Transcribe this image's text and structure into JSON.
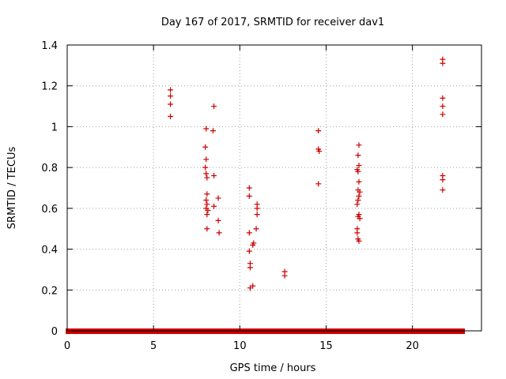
{
  "chart_data": {
    "type": "scatter",
    "title": "Day 167 of 2017, SRMTID for receiver dav1",
    "xlabel": "GPS time / hours",
    "ylabel": "SRMTID / TECUs",
    "xlim": [
      0,
      24
    ],
    "ylim": [
      0,
      1.4
    ],
    "xticks": [
      0,
      5,
      10,
      15,
      20
    ],
    "xtick_labels": [
      "0",
      "5",
      "10",
      "15",
      "20"
    ],
    "yticks": [
      0,
      0.2,
      0.4,
      0.6,
      0.8,
      1.0,
      1.2,
      1.4
    ],
    "ytick_labels": [
      "0",
      "0.2",
      "0.4",
      "0.6",
      "0.8",
      "1",
      "1.2",
      "1.4"
    ],
    "grid": true,
    "marker": "+",
    "color": "#cc0000",
    "zero_baseline": {
      "y": 0,
      "segments": [
        [
          0.05,
          8.1
        ],
        [
          8.25,
          14.65
        ],
        [
          14.75,
          16.9
        ],
        [
          17.05,
          21.7
        ],
        [
          21.8,
          22.9
        ]
      ]
    },
    "points": [
      {
        "x": 5.98,
        "y": 1.18
      },
      {
        "x": 5.98,
        "y": 1.15
      },
      {
        "x": 5.98,
        "y": 1.11
      },
      {
        "x": 5.98,
        "y": 1.05
      },
      {
        "x": 8.05,
        "y": 0.99
      },
      {
        "x": 8.0,
        "y": 0.9
      },
      {
        "x": 8.05,
        "y": 0.84
      },
      {
        "x": 8.0,
        "y": 0.8
      },
      {
        "x": 8.05,
        "y": 0.77
      },
      {
        "x": 8.1,
        "y": 0.75
      },
      {
        "x": 8.1,
        "y": 0.67
      },
      {
        "x": 8.05,
        "y": 0.64
      },
      {
        "x": 8.1,
        "y": 0.62
      },
      {
        "x": 8.05,
        "y": 0.6
      },
      {
        "x": 8.15,
        "y": 0.59
      },
      {
        "x": 8.1,
        "y": 0.57
      },
      {
        "x": 8.1,
        "y": 0.5
      },
      {
        "x": 8.5,
        "y": 1.1
      },
      {
        "x": 8.45,
        "y": 0.98
      },
      {
        "x": 8.5,
        "y": 0.76
      },
      {
        "x": 8.5,
        "y": 0.61
      },
      {
        "x": 8.75,
        "y": 0.65
      },
      {
        "x": 8.75,
        "y": 0.54
      },
      {
        "x": 8.8,
        "y": 0.48
      },
      {
        "x": 10.55,
        "y": 0.7
      },
      {
        "x": 10.55,
        "y": 0.66
      },
      {
        "x": 10.55,
        "y": 0.48
      },
      {
        "x": 10.55,
        "y": 0.39
      },
      {
        "x": 10.6,
        "y": 0.33
      },
      {
        "x": 10.6,
        "y": 0.31
      },
      {
        "x": 10.6,
        "y": 0.21
      },
      {
        "x": 10.75,
        "y": 0.22
      },
      {
        "x": 10.8,
        "y": 0.43
      },
      {
        "x": 10.75,
        "y": 0.42
      },
      {
        "x": 11.0,
        "y": 0.62
      },
      {
        "x": 11.0,
        "y": 0.6
      },
      {
        "x": 11.0,
        "y": 0.57
      },
      {
        "x": 10.95,
        "y": 0.5
      },
      {
        "x": 12.6,
        "y": 0.29
      },
      {
        "x": 12.6,
        "y": 0.27
      },
      {
        "x": 14.55,
        "y": 0.98
      },
      {
        "x": 14.55,
        "y": 0.89
      },
      {
        "x": 14.6,
        "y": 0.88
      },
      {
        "x": 14.55,
        "y": 0.72
      },
      {
        "x": 16.9,
        "y": 0.91
      },
      {
        "x": 16.85,
        "y": 0.86
      },
      {
        "x": 16.9,
        "y": 0.81
      },
      {
        "x": 16.8,
        "y": 0.79
      },
      {
        "x": 16.85,
        "y": 0.78
      },
      {
        "x": 16.9,
        "y": 0.73
      },
      {
        "x": 16.85,
        "y": 0.69
      },
      {
        "x": 16.95,
        "y": 0.68
      },
      {
        "x": 16.9,
        "y": 0.66
      },
      {
        "x": 16.85,
        "y": 0.64
      },
      {
        "x": 16.8,
        "y": 0.62
      },
      {
        "x": 16.9,
        "y": 0.57
      },
      {
        "x": 16.85,
        "y": 0.56
      },
      {
        "x": 16.95,
        "y": 0.55
      },
      {
        "x": 16.8,
        "y": 0.5
      },
      {
        "x": 16.8,
        "y": 0.48
      },
      {
        "x": 16.85,
        "y": 0.45
      },
      {
        "x": 16.9,
        "y": 0.44
      },
      {
        "x": 21.75,
        "y": 1.33
      },
      {
        "x": 21.75,
        "y": 1.31
      },
      {
        "x": 21.75,
        "y": 1.14
      },
      {
        "x": 21.75,
        "y": 1.1
      },
      {
        "x": 21.75,
        "y": 1.06
      },
      {
        "x": 21.75,
        "y": 0.76
      },
      {
        "x": 21.75,
        "y": 0.74
      },
      {
        "x": 21.75,
        "y": 0.69
      }
    ]
  }
}
